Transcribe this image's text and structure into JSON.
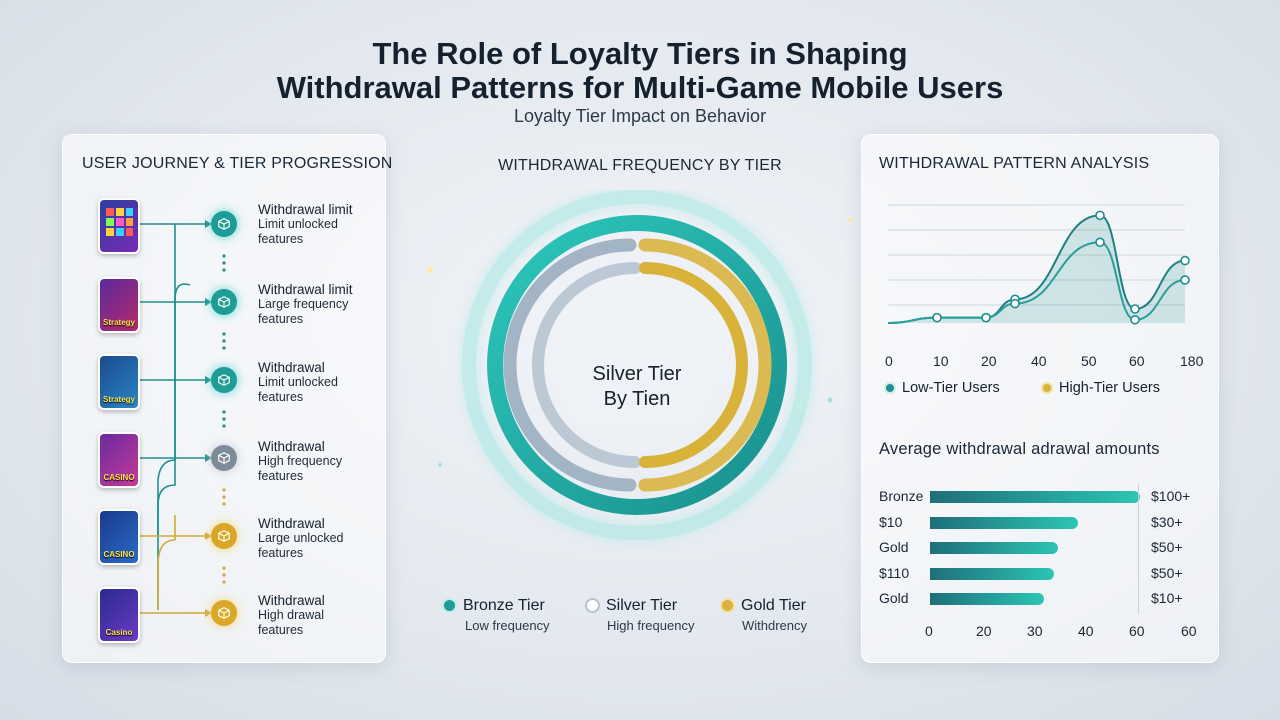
{
  "header": {
    "title_line1": "The Role of Loyalty Tiers in Shaping",
    "title_line2": "Withdrawal Patterns for Multi-Game Mobile Users",
    "subtitle": "Loyalty Tier Impact on Behavior"
  },
  "journey": {
    "title": "USER JOURNEY & TIER PROGRESSION",
    "steps": [
      {
        "game": "",
        "head": "Withdrawal limit",
        "line2": "Limit unlocked",
        "line3": "features",
        "tier_color": "#1f9c96",
        "game_colors": [
          "#2a3f9e",
          "#7a2ab5"
        ]
      },
      {
        "game": "Strategy",
        "head": "Withdrawal limit",
        "line2": "Large frequency",
        "line3": "features",
        "tier_color": "#1f9c96",
        "game_colors": [
          "#5b2a9e",
          "#b52a6a"
        ]
      },
      {
        "game": "Strategy",
        "head": "Withdrawal",
        "line2": "Limit unlocked",
        "line3": "features",
        "tier_color": "#1f9c96",
        "game_colors": [
          "#1a4a8e",
          "#2a86c5"
        ]
      },
      {
        "game": "CASINO",
        "head": "Withdrawal",
        "line2": "High frequency",
        "line3": "features",
        "tier_color": "#7e8c99",
        "game_colors": [
          "#6a2a9e",
          "#c53a9a"
        ]
      },
      {
        "game": "CASINO",
        "head": "Withdrawal",
        "line2": "Large unlocked",
        "line3": "features",
        "tier_color": "#d9a828",
        "game_colors": [
          "#1a3a8e",
          "#2a6ac5"
        ]
      },
      {
        "game": "Casino",
        "head": "Withdrawal",
        "line2": "High drawal",
        "line3": "features",
        "tier_color": "#d9a828",
        "game_colors": [
          "#2a2a8e",
          "#6a3ac5"
        ]
      }
    ]
  },
  "center": {
    "title": "WITHDRAWAL FREQUENCY BY TIER",
    "ring_label_line1": "Silver Tier",
    "ring_label_line2": "By Tien",
    "legend": [
      {
        "name": "Bronze Tier",
        "sub": "Low frequency",
        "color": "#1f9c96"
      },
      {
        "name": "Silver Tier",
        "sub": "High frequency",
        "color": "#c9d3dd"
      },
      {
        "name": "Gold Tier",
        "sub": "Withdrency",
        "color": "#d9b23a"
      }
    ]
  },
  "right": {
    "title": "WITHDRAWAL PATTERN ANALYSIS",
    "bar_title": "Average withdrawal adrawal amounts"
  },
  "chart_data": [
    {
      "type": "line",
      "x_ticks": [
        "0",
        "10",
        "20",
        "40",
        "50",
        "60",
        "180"
      ],
      "series": [
        {
          "name": "Low-Tier Users",
          "color": "#1f8f8f",
          "values": [
            0,
            0.5,
            0.5,
            2.2,
            10,
            1.3,
            5.8
          ]
        },
        {
          "name": "High-Tier Users",
          "color": "#d9b23a",
          "values": [
            0,
            0.5,
            0.5,
            1.8,
            7.5,
            0.3,
            4.0
          ]
        }
      ],
      "grid": true
    },
    {
      "type": "bar",
      "orientation": "horizontal",
      "categories": [
        "Bronze",
        "$10",
        "Gold",
        "$110",
        "Gold"
      ],
      "values": [
        61,
        43,
        37,
        36,
        33
      ],
      "value_labels": [
        "$100+",
        "$30+",
        "$50+",
        "$50+",
        "$10+"
      ],
      "x_ticks": [
        "0",
        "20",
        "30",
        "40",
        "60",
        "60"
      ],
      "xlim": [
        0,
        70
      ]
    }
  ]
}
